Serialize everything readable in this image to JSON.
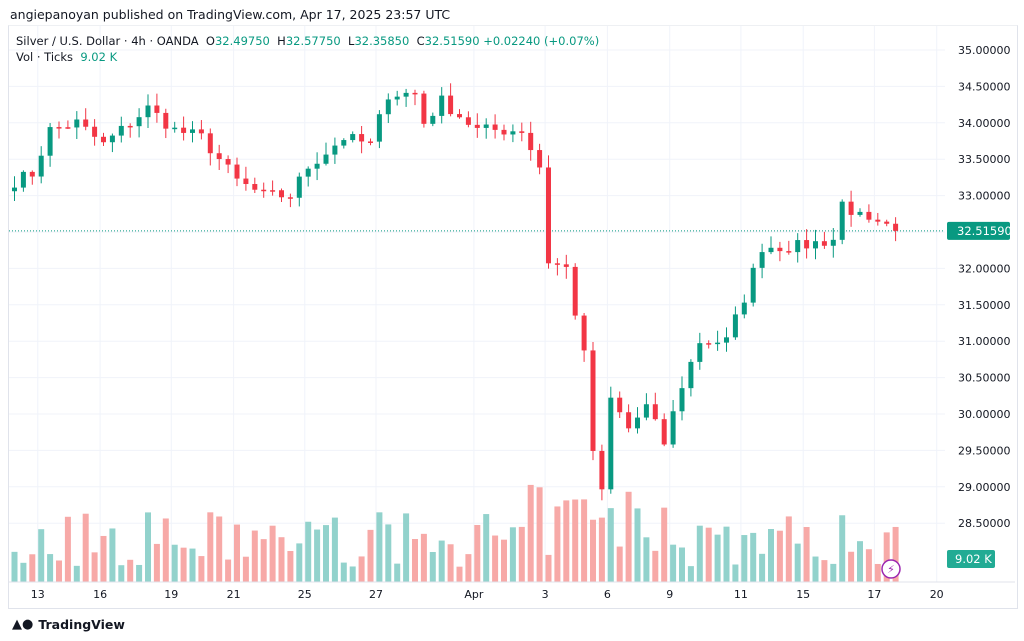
{
  "header": {
    "published": "angiepanoyan published on TradingView.com, Apr 17, 2025 23:57 UTC"
  },
  "legend": {
    "symbol": "Silver / U.S. Dollar · 4h · OANDA",
    "o_label": "O",
    "o": "32.49750",
    "h_label": "H",
    "h": "32.57750",
    "l_label": "L",
    "l": "32.35850",
    "c_label": "C",
    "c": "32.51590",
    "change": "+0.02240 (+0.07%)",
    "vol_label": "Vol · Ticks",
    "vol": "9.02 K"
  },
  "footer": {
    "brand": "TradingView"
  },
  "colors": {
    "up": "#089981",
    "down": "#f23645",
    "vol_up": "#92d2cc",
    "vol_down": "#f7a9a7"
  },
  "chart_data": {
    "type": "candlestick",
    "ylim": [
      28.0,
      35.2
    ],
    "y_ticks": [
      "35.00000",
      "34.50000",
      "34.00000",
      "33.50000",
      "33.00000",
      "32.50000",
      "32.00000",
      "31.50000",
      "31.00000",
      "30.50000",
      "30.00000",
      "29.50000",
      "29.00000",
      "28.50000"
    ],
    "x_ticks": [
      {
        "label": "13",
        "i": 2
      },
      {
        "label": "16",
        "i": 9
      },
      {
        "label": "19",
        "i": 17
      },
      {
        "label": "21",
        "i": 24
      },
      {
        "label": "25",
        "i": 32
      },
      {
        "label": "27",
        "i": 40
      },
      {
        "label": "Apr",
        "i": 51
      },
      {
        "label": "3",
        "i": 59
      },
      {
        "label": "6",
        "i": 66
      },
      {
        "label": "9",
        "i": 73
      },
      {
        "label": "11",
        "i": 81
      },
      {
        "label": "15",
        "i": 88
      },
      {
        "label": "17",
        "i": 96
      },
      {
        "label": "20",
        "i": 103
      }
    ],
    "candle_count": 100,
    "close_keypoints": [
      [
        0,
        33.2
      ],
      [
        2,
        33.3
      ],
      [
        4,
        33.9
      ],
      [
        7,
        34.0
      ],
      [
        10,
        33.7
      ],
      [
        15,
        34.2
      ],
      [
        18,
        33.9
      ],
      [
        21,
        33.8
      ],
      [
        25,
        33.2
      ],
      [
        28,
        33.0
      ],
      [
        31,
        33.0
      ],
      [
        33,
        33.4
      ],
      [
        37,
        33.8
      ],
      [
        40,
        33.7
      ],
      [
        42,
        34.4
      ],
      [
        45,
        34.4
      ],
      [
        46,
        34.0
      ],
      [
        48,
        34.3
      ],
      [
        52,
        33.9
      ],
      [
        57,
        33.9
      ],
      [
        59,
        33.4
      ],
      [
        60,
        32.1
      ],
      [
        62,
        32.0
      ],
      [
        64,
        30.8
      ],
      [
        65,
        29.5
      ],
      [
        66,
        28.9
      ],
      [
        67,
        30.2
      ],
      [
        69,
        29.8
      ],
      [
        71,
        30.1
      ],
      [
        73,
        29.6
      ],
      [
        75,
        30.4
      ],
      [
        77,
        31.0
      ],
      [
        80,
        31.0
      ],
      [
        82,
        31.6
      ],
      [
        84,
        32.3
      ],
      [
        88,
        32.3
      ],
      [
        92,
        32.4
      ],
      [
        93,
        32.9
      ],
      [
        96,
        32.6
      ],
      [
        99,
        32.5159
      ]
    ],
    "last_price": "32.51590",
    "last_volume": "9.02 K"
  }
}
